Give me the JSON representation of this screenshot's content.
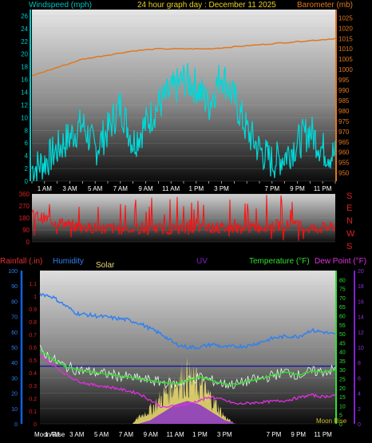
{
  "header": {
    "windspeed_label": "Windspeed (mph)",
    "title": "24 hour graph day : December 11 2025",
    "barometer_label": "Barometer (mb)"
  },
  "direction_letters": [
    "S",
    "E",
    "N",
    "W",
    "S"
  ],
  "bottom_legend": {
    "rainfall": "Rainfall (.in)",
    "humidity": "Humidity",
    "solar": "Solar",
    "uv": "UV",
    "temperature": "Temperature (°F)",
    "dewpoint": "Dew Point (°F)"
  },
  "moon_labels": {
    "rise_left": "Moon Rise",
    "rise_right": "Moon Rise"
  },
  "time_labels": [
    "1 AM",
    "3 AM",
    "5 AM",
    "7 AM",
    "9 AM",
    "11 AM",
    "1 PM",
    "3 PM",
    "7 PM",
    "9 PM",
    "11 PM"
  ],
  "colors": {
    "windspeed": "#00d8d8",
    "barometer": "#e07820",
    "direction": "#ff1010",
    "humidity": "#3080f0",
    "temperature": "#30e030",
    "dewpoint": "#e030e0",
    "solar": "#e8d870",
    "uv": "#8020d0",
    "rain_axis": "#1060e0"
  },
  "chart_data": [
    {
      "type": "line",
      "title": "24 hour graph day : December 11 2025",
      "x_unit": "hour of day",
      "x_ticks": [
        "1 AM",
        "3 AM",
        "5 AM",
        "7 AM",
        "9 AM",
        "11 AM",
        "1 PM",
        "3 PM",
        "7 PM",
        "9 PM",
        "11 PM"
      ],
      "y_left": {
        "label": "Windspeed (mph)",
        "ylim": [
          0,
          27
        ],
        "ticks": [
          0,
          2,
          4,
          6,
          8,
          10,
          12,
          14,
          16,
          18,
          20,
          22,
          24,
          26
        ]
      },
      "y_right": {
        "label": "Barometer (mb)",
        "ylim": [
          946,
          1029
        ],
        "ticks": [
          950,
          955,
          960,
          965,
          970,
          975,
          980,
          985,
          990,
          995,
          1000,
          1005,
          1010,
          1015,
          1020,
          1025
        ]
      },
      "series": [
        {
          "name": "Windspeed (mph)",
          "axis": "left",
          "x": [
            0,
            1,
            2,
            3,
            4,
            5,
            6,
            7,
            8,
            9,
            10,
            11,
            12,
            13,
            14,
            15,
            16,
            17,
            18,
            19,
            20,
            21,
            22,
            23,
            24
          ],
          "values": [
            2,
            3,
            5,
            7,
            9,
            5,
            8,
            12,
            6,
            9,
            12,
            14,
            16,
            15,
            12,
            17,
            13,
            8,
            5,
            3,
            4,
            6,
            8,
            5,
            4
          ]
        },
        {
          "name": "Barometer (mb)",
          "axis": "right",
          "x": [
            0,
            2,
            4,
            6,
            8,
            10,
            12,
            14,
            16,
            18,
            20,
            22,
            24
          ],
          "values": [
            997,
            1001,
            1005,
            1007,
            1009,
            1010,
            1010,
            1010,
            1011,
            1012,
            1013,
            1014,
            1015
          ]
        }
      ]
    },
    {
      "type": "scatter",
      "title": "",
      "y": {
        "ylim": [
          0,
          360
        ],
        "ticks": [
          0,
          90,
          180,
          270,
          360
        ]
      },
      "compass_labels": [
        "S",
        "E",
        "N",
        "W",
        "S"
      ],
      "series": [
        {
          "name": "Wind direction",
          "x": [
            0,
            2,
            4,
            6,
            8,
            10,
            12,
            14,
            16,
            18,
            20,
            22,
            24
          ],
          "values": [
            200,
            150,
            110,
            100,
            95,
            100,
            95,
            110,
            100,
            110,
            130,
            100,
            110
          ]
        }
      ]
    },
    {
      "type": "line",
      "title": "",
      "axes": {
        "rainfall": {
          "label": "Rainfall (.in)",
          "ylim": [
            0,
            1.2
          ],
          "ticks": [
            0,
            0.1,
            0.2,
            0.3,
            0.4,
            0.5,
            0.6,
            0.7,
            0.8,
            0.9,
            1,
            1.1
          ]
        },
        "humidity": {
          "label": "Humidity",
          "ylim": [
            0,
            100
          ],
          "ticks": [
            0,
            10,
            20,
            30,
            40,
            50,
            60,
            70,
            80,
            90,
            100
          ]
        },
        "temperature": {
          "label": "Temperature (°F)",
          "ylim": [
            0,
            85
          ],
          "ticks": [
            0,
            5,
            10,
            15,
            20,
            25,
            30,
            35,
            40,
            45,
            50,
            55,
            60,
            65,
            70,
            75,
            80
          ]
        },
        "uv": {
          "label": "UV",
          "ylim": [
            0,
            20
          ],
          "ticks": [
            0,
            2,
            4,
            6,
            8,
            10,
            12,
            14,
            16,
            18,
            20
          ]
        }
      },
      "series": [
        {
          "name": "Humidity",
          "axis": "humidity",
          "x": [
            0,
            1,
            3,
            5,
            7,
            8,
            9,
            10,
            11,
            12,
            13,
            14,
            15,
            17,
            19,
            20,
            21,
            22,
            23,
            24
          ],
          "values": [
            85,
            83,
            72,
            70,
            68,
            66,
            62,
            58,
            52,
            50,
            50,
            52,
            50,
            51,
            56,
            57,
            57,
            61,
            60,
            58
          ]
        },
        {
          "name": "Temperature (°F)",
          "axis": "temperature",
          "x": [
            0,
            1,
            2,
            3,
            4,
            5,
            6,
            7,
            8,
            9,
            10,
            11,
            12,
            13,
            14,
            15,
            16,
            17,
            18,
            19,
            20,
            21,
            22,
            23,
            24
          ],
          "values": [
            41,
            36,
            32,
            30,
            29,
            28,
            27,
            26,
            25,
            24,
            23,
            22,
            24,
            26,
            24,
            22,
            22,
            24,
            25,
            27,
            29,
            27,
            29,
            29,
            30
          ]
        },
        {
          "name": "Dew Point (°F)",
          "axis": "temperature",
          "x": [
            0,
            1,
            2,
            3,
            4,
            6,
            8,
            10,
            12,
            14,
            15,
            16,
            18,
            20,
            22,
            23,
            24
          ],
          "values": [
            38,
            33,
            28,
            24,
            22,
            20,
            17,
            9,
            11,
            15,
            13,
            11,
            12,
            13,
            16,
            15,
            16
          ]
        },
        {
          "name": "Solar",
          "axis": "rainfall",
          "x": [
            7.5,
            8,
            9,
            10,
            11,
            12,
            13,
            14,
            15,
            15.8
          ],
          "values": [
            0,
            0.05,
            0.12,
            0.22,
            0.35,
            0.38,
            0.3,
            0.2,
            0.06,
            0
          ]
        },
        {
          "name": "UV",
          "axis": "uv",
          "x": [
            8,
            9,
            10,
            11,
            12,
            13,
            14,
            15,
            16
          ],
          "values": [
            0,
            0.5,
            1.5,
            2.5,
            3,
            2.5,
            1.5,
            0.5,
            0
          ]
        }
      ],
      "reference_line": {
        "axis": "temperature",
        "value": 32
      }
    }
  ]
}
